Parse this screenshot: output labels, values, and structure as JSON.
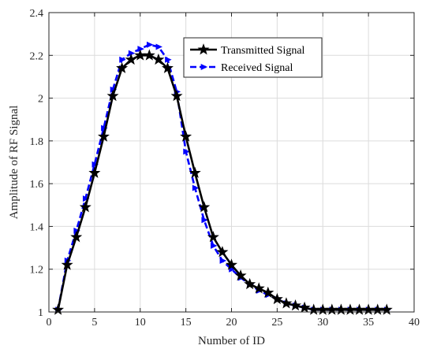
{
  "chart_data": {
    "type": "line",
    "title": "",
    "xlabel": "Number of ID",
    "ylabel": "Amplitude of RF Signal",
    "xlim": [
      0,
      40
    ],
    "ylim": [
      1,
      2.4
    ],
    "xticks": [
      0,
      5,
      10,
      15,
      20,
      25,
      30,
      35,
      40
    ],
    "yticks": [
      1,
      1.2,
      1.4,
      1.6,
      1.8,
      2,
      2.2,
      2.4
    ],
    "xtick_labels": [
      "0",
      "5",
      "10",
      "15",
      "20",
      "25",
      "30",
      "35",
      "40"
    ],
    "ytick_labels": [
      "1",
      "1.2",
      "1.4",
      "1.6",
      "1.8",
      "2",
      "2.2",
      "2.4"
    ],
    "grid": true,
    "legend_position": "top-right",
    "x": [
      1,
      2,
      3,
      4,
      5,
      6,
      7,
      8,
      9,
      10,
      11,
      12,
      13,
      14,
      15,
      16,
      17,
      18,
      19,
      20,
      21,
      22,
      23,
      24,
      25,
      26,
      27,
      28,
      29,
      30,
      31,
      32,
      33,
      34,
      35,
      36,
      37
    ],
    "series": [
      {
        "name": "Transmitted Signal",
        "color": "#000000",
        "marker": "star",
        "line_style": "solid",
        "values": [
          1.01,
          1.22,
          1.35,
          1.49,
          1.65,
          1.82,
          2.01,
          2.14,
          2.18,
          2.2,
          2.2,
          2.18,
          2.14,
          2.01,
          1.82,
          1.65,
          1.49,
          1.35,
          1.28,
          1.22,
          1.17,
          1.13,
          1.11,
          1.09,
          1.06,
          1.04,
          1.03,
          1.02,
          1.01,
          1.01,
          1.01,
          1.01,
          1.01,
          1.01,
          1.01,
          1.01,
          1.01
        ]
      },
      {
        "name": "Received Signal",
        "color": "#0000ff",
        "marker": "triangle-right",
        "line_style": "dashed",
        "values": [
          1.01,
          1.24,
          1.38,
          1.53,
          1.69,
          1.86,
          2.04,
          2.18,
          2.21,
          2.23,
          2.25,
          2.24,
          2.18,
          2.03,
          1.75,
          1.58,
          1.43,
          1.31,
          1.24,
          1.2,
          1.16,
          1.13,
          1.1,
          1.08,
          1.06,
          1.04,
          1.03,
          1.02,
          1.01,
          1.01,
          1.01,
          1.01,
          1.01,
          1.01,
          1.01,
          1.01,
          1.01
        ]
      }
    ]
  }
}
